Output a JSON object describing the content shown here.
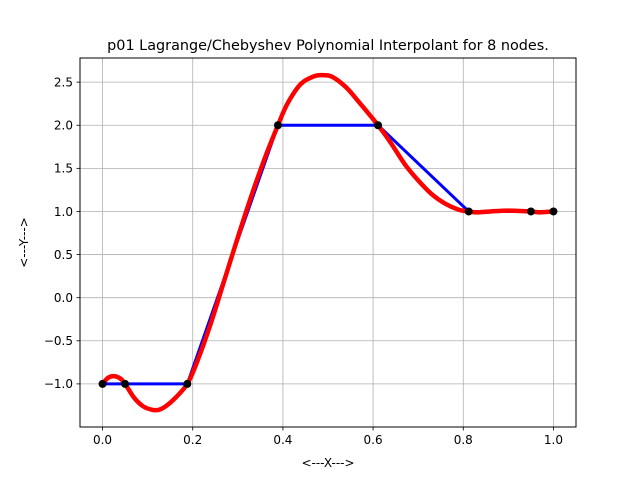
{
  "chart_data": {
    "type": "line",
    "title": "p01 Lagrange/Chebyshev Polynomial Interpolant for 8 nodes.",
    "xlabel": "<---X--->",
    "ylabel": "<---Y--->",
    "xlim": [
      -0.05,
      1.05
    ],
    "ylim": [
      -1.5,
      2.78
    ],
    "grid": true,
    "x_ticks": [
      0.0,
      0.2,
      0.4,
      0.6,
      0.8,
      1.0
    ],
    "x_tick_labels": [
      "0.0",
      "0.2",
      "0.4",
      "0.6",
      "0.8",
      "1.0"
    ],
    "y_ticks": [
      -1.0,
      -0.5,
      0.0,
      0.5,
      1.0,
      1.5,
      2.0,
      2.5
    ],
    "y_tick_labels": [
      "−1.0",
      "−0.5",
      "0.0",
      "0.5",
      "1.0",
      "1.5",
      "2.0",
      "2.5"
    ],
    "colors": {
      "data_line": "#0000ff",
      "interpolant": "#ff0000",
      "nodes": "#000000",
      "grid": "#b0b0b0"
    },
    "series": [
      {
        "kind": "data",
        "color": "#0000ff",
        "x": [
          0.0,
          0.05,
          0.188,
          0.389,
          0.611,
          0.812,
          0.95,
          1.0
        ],
        "y": [
          -1.0,
          -1.0,
          -1.0,
          2.0,
          2.0,
          1.0,
          1.0,
          1.0
        ]
      },
      {
        "kind": "interpolant",
        "color": "#ff0000",
        "x": [
          0.0,
          0.012,
          0.025,
          0.04,
          0.05,
          0.07,
          0.09,
          0.11,
          0.125,
          0.14,
          0.16,
          0.188,
          0.21,
          0.24,
          0.27,
          0.3,
          0.33,
          0.36,
          0.389,
          0.41,
          0.44,
          0.47,
          0.49,
          0.51,
          0.54,
          0.57,
          0.611,
          0.64,
          0.67,
          0.7,
          0.73,
          0.76,
          0.79,
          0.812,
          0.83,
          0.86,
          0.9,
          0.95,
          0.97,
          1.0
        ],
        "y": [
          -1.0,
          -0.93,
          -0.91,
          -0.94,
          -1.0,
          -1.16,
          -1.26,
          -1.3,
          -1.3,
          -1.26,
          -1.17,
          -1.0,
          -0.74,
          -0.3,
          0.2,
          0.7,
          1.18,
          1.62,
          2.0,
          2.25,
          2.48,
          2.57,
          2.58,
          2.56,
          2.44,
          2.26,
          2.0,
          1.79,
          1.55,
          1.36,
          1.2,
          1.09,
          1.02,
          1.0,
          0.99,
          1.0,
          1.01,
          1.0,
          0.99,
          1.0
        ]
      }
    ],
    "nodes": {
      "x": [
        0.0,
        0.05,
        0.188,
        0.389,
        0.611,
        0.812,
        0.95,
        1.0
      ],
      "y": [
        -1.0,
        -1.0,
        -1.0,
        2.0,
        2.0,
        1.0,
        1.0,
        1.0
      ]
    }
  }
}
